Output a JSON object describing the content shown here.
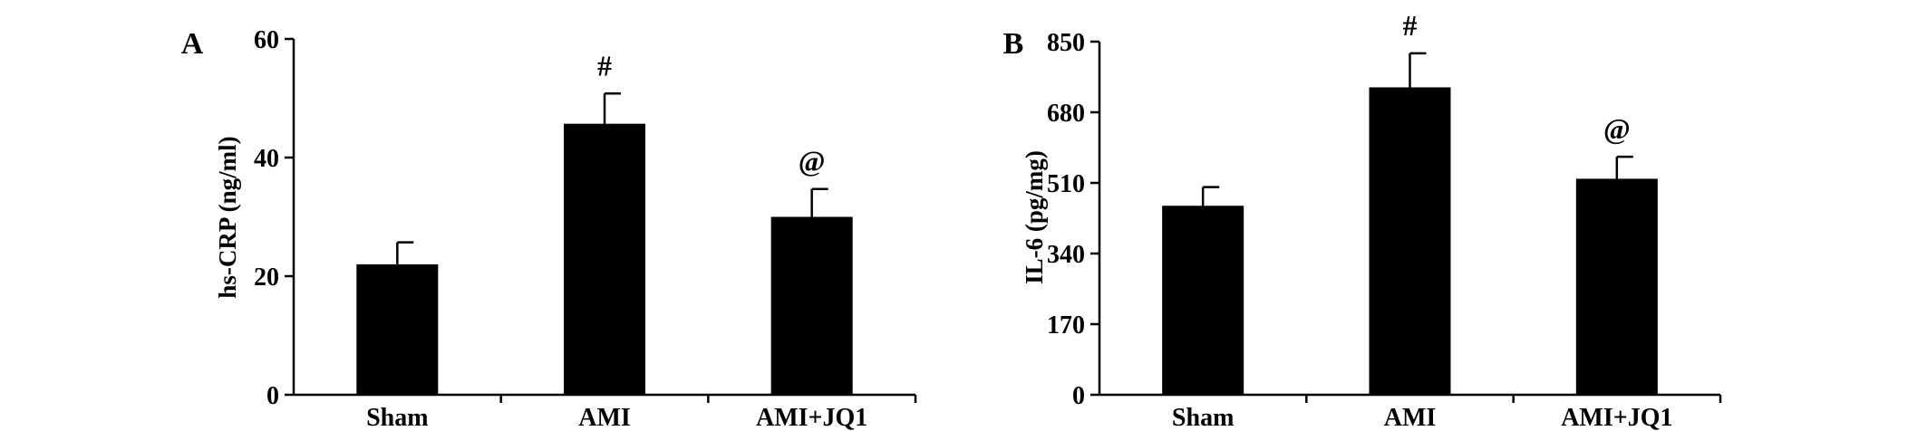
{
  "colors": {
    "bar": "#000000",
    "axis": "#000000",
    "background": "#ffffff"
  },
  "chart_data": [
    {
      "type": "bar",
      "panel_label": "A",
      "categories": [
        "Sham",
        "AMI",
        "AMI+JQ1"
      ],
      "values": [
        22,
        45.7,
        30
      ],
      "errors": [
        3.7,
        5.1,
        4.7
      ],
      "annotations": [
        "",
        "#",
        "@"
      ],
      "ylabel": "hs-CRP (ng/ml)",
      "xlabel": "",
      "ylim": [
        0,
        60
      ],
      "yticks": [
        "0",
        "20",
        "40",
        "60"
      ],
      "grid": false
    },
    {
      "type": "bar",
      "panel_label": "B",
      "categories": [
        "Sham",
        "AMI",
        "AMI+JQ1"
      ],
      "values": [
        455,
        740,
        520
      ],
      "errors": [
        45,
        82,
        53
      ],
      "annotations": [
        "",
        "#",
        "@"
      ],
      "ylabel": "IL-6 (pg/mg)",
      "xlabel": "",
      "ylim": [
        0,
        850
      ],
      "yticks": [
        "0",
        "170",
        "340",
        "510",
        "680",
        "850"
      ],
      "grid": false
    }
  ]
}
